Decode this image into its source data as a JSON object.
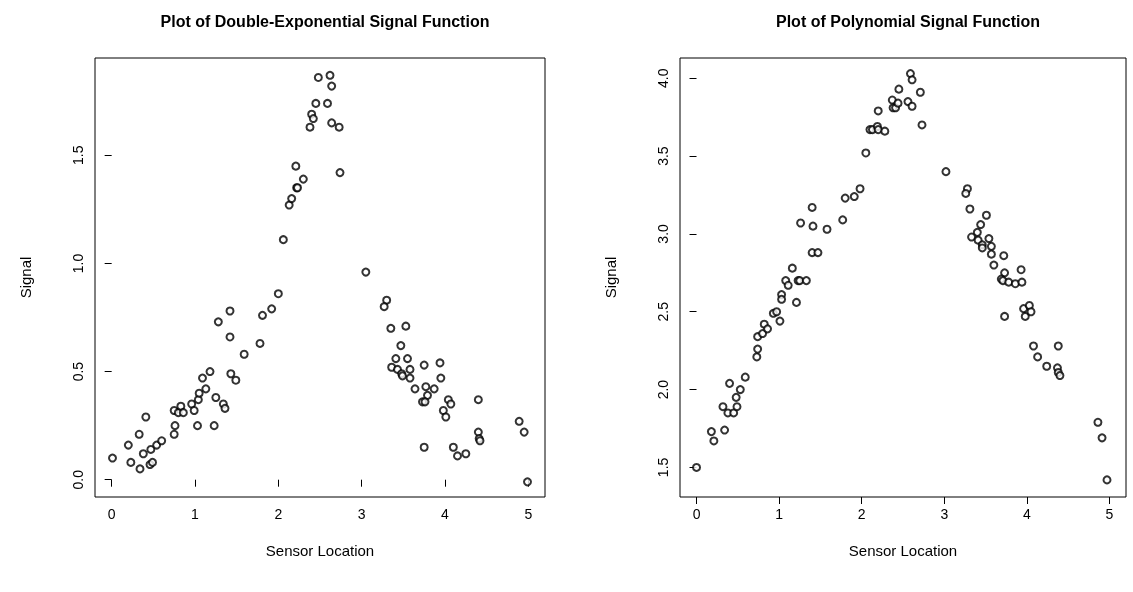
{
  "chart_data": [
    {
      "type": "scatter",
      "title": "Plot of Double-Exponential Signal Function",
      "xlabel": "Sensor Location",
      "ylabel": "Signal",
      "marker": "circle",
      "grid": false,
      "xlim": [
        -0.2,
        5.2
      ],
      "xticks": [
        0,
        1,
        2,
        3,
        4,
        5
      ],
      "ylim": [
        -0.08,
        1.95
      ],
      "yticks": [
        {
          "value": 0,
          "label": "0.0"
        },
        0.5,
        {
          "value": 1,
          "label": "1.0"
        },
        1.5
      ],
      "series": [
        {
          "color": "#000000",
          "x": [
            0.01,
            0.23,
            0.34,
            0.2,
            0.33,
            0.41,
            0.38,
            0.46,
            0.49,
            0.47,
            0.54,
            0.6,
            0.75,
            0.76,
            0.75,
            0.8,
            0.83,
            0.86,
            0.96,
            0.99,
            1.03,
            1.04,
            1.05,
            1.09,
            1.13,
            1.18,
            1.23,
            1.25,
            1.28,
            1.34,
            1.36,
            1.42,
            1.42,
            1.43,
            1.49,
            1.59,
            1.78,
            1.81,
            1.92,
            2.0,
            2.06,
            2.13,
            2.16,
            2.22,
            2.23,
            2.3,
            2.21,
            2.38,
            2.4,
            2.42,
            2.45,
            2.48,
            2.62,
            2.59,
            2.64,
            2.64,
            2.73,
            2.74,
            3.05,
            3.3,
            3.27,
            3.35,
            3.53,
            3.47,
            3.41,
            3.55,
            3.36,
            3.43,
            3.48,
            3.49,
            3.58,
            3.58,
            3.75,
            3.94,
            3.95,
            3.64,
            3.77,
            3.79,
            3.87,
            3.73,
            3.76,
            4.04,
            4.07,
            3.98,
            4.01,
            4.4,
            4.4,
            4.41,
            4.42,
            3.75,
            4.1,
            4.15,
            4.25,
            4.89,
            4.95,
            4.99
          ],
          "values": [
            0.1,
            0.08,
            0.05,
            0.16,
            0.21,
            0.29,
            0.12,
            0.07,
            0.08,
            0.14,
            0.16,
            0.18,
            0.21,
            0.25,
            0.32,
            0.31,
            0.34,
            0.31,
            0.35,
            0.32,
            0.25,
            0.37,
            0.4,
            0.47,
            0.42,
            0.5,
            0.25,
            0.38,
            0.73,
            0.35,
            0.33,
            0.78,
            0.66,
            0.49,
            0.46,
            0.58,
            0.63,
            0.76,
            0.79,
            0.86,
            1.11,
            1.27,
            1.3,
            1.35,
            1.35,
            1.39,
            1.45,
            1.63,
            1.69,
            1.67,
            1.74,
            1.86,
            1.87,
            1.74,
            1.82,
            1.65,
            1.63,
            1.42,
            0.96,
            0.83,
            0.8,
            0.7,
            0.71,
            0.62,
            0.56,
            0.56,
            0.52,
            0.51,
            0.49,
            0.48,
            0.51,
            0.47,
            0.53,
            0.54,
            0.47,
            0.42,
            0.43,
            0.39,
            0.42,
            0.36,
            0.36,
            0.37,
            0.35,
            0.32,
            0.29,
            0.37,
            0.22,
            0.19,
            0.18,
            0.15,
            0.15,
            0.11,
            0.12,
            0.27,
            0.22,
            -0.01
          ]
        }
      ]
    },
    {
      "type": "scatter",
      "title": "Plot of Polynomial Signal Function",
      "xlabel": "Sensor Location",
      "ylabel": "Signal",
      "marker": "circle",
      "grid": false,
      "xlim": [
        -0.2,
        5.2
      ],
      "xticks": [
        0,
        1,
        2,
        3,
        4,
        5
      ],
      "ylim": [
        1.31,
        4.13
      ],
      "yticks": [
        1.5,
        {
          "value": 2,
          "label": "2.0"
        },
        2.5,
        {
          "value": 3,
          "label": "3.0"
        },
        3.5,
        {
          "value": 4,
          "label": "4.0"
        }
      ],
      "series": [
        {
          "color": "#000000",
          "x": [
            0.0,
            0.18,
            0.21,
            0.34,
            0.32,
            0.38,
            0.45,
            0.49,
            0.4,
            0.48,
            0.53,
            0.59,
            0.73,
            0.74,
            0.74,
            0.8,
            0.82,
            0.86,
            0.93,
            0.97,
            1.01,
            1.03,
            1.03,
            1.08,
            1.11,
            1.16,
            1.21,
            1.23,
            1.25,
            1.33,
            1.26,
            1.4,
            1.41,
            1.4,
            1.47,
            1.58,
            1.77,
            1.8,
            1.91,
            1.98,
            2.05,
            2.1,
            2.13,
            2.19,
            2.2,
            2.28,
            2.2,
            2.37,
            2.38,
            2.41,
            2.44,
            2.45,
            2.56,
            2.59,
            2.61,
            2.61,
            2.71,
            2.73,
            3.02,
            3.28,
            3.26,
            3.31,
            3.51,
            3.44,
            3.4,
            3.33,
            3.41,
            3.46,
            3.46,
            3.54,
            3.57,
            3.57,
            3.72,
            3.6,
            3.73,
            3.69,
            3.71,
            3.78,
            3.86,
            3.93,
            3.94,
            3.73,
            3.96,
            4.03,
            3.98,
            4.05,
            4.08,
            4.13,
            4.24,
            4.38,
            4.37,
            4.38,
            4.4,
            4.86,
            4.91,
            4.97
          ],
          "values": [
            1.5,
            1.73,
            1.67,
            1.74,
            1.89,
            1.85,
            1.85,
            1.89,
            2.04,
            1.95,
            2.0,
            2.08,
            2.21,
            2.26,
            2.34,
            2.36,
            2.42,
            2.39,
            2.49,
            2.5,
            2.44,
            2.61,
            2.58,
            2.7,
            2.67,
            2.78,
            2.56,
            2.7,
            2.7,
            2.7,
            3.07,
            3.17,
            3.05,
            2.88,
            2.88,
            3.03,
            3.09,
            3.23,
            3.24,
            3.29,
            3.52,
            3.67,
            3.67,
            3.69,
            3.67,
            3.66,
            3.79,
            3.86,
            3.81,
            3.81,
            3.84,
            3.93,
            3.85,
            4.03,
            3.99,
            3.82,
            3.91,
            3.7,
            3.4,
            3.29,
            3.26,
            3.16,
            3.12,
            3.06,
            3.01,
            2.98,
            2.96,
            2.93,
            2.91,
            2.97,
            2.92,
            2.87,
            2.86,
            2.8,
            2.75,
            2.71,
            2.7,
            2.69,
            2.68,
            2.77,
            2.69,
            2.47,
            2.52,
            2.54,
            2.47,
            2.5,
            2.28,
            2.21,
            2.15,
            2.28,
            2.14,
            2.11,
            2.09,
            1.79,
            1.69,
            1.42
          ]
        }
      ]
    }
  ]
}
